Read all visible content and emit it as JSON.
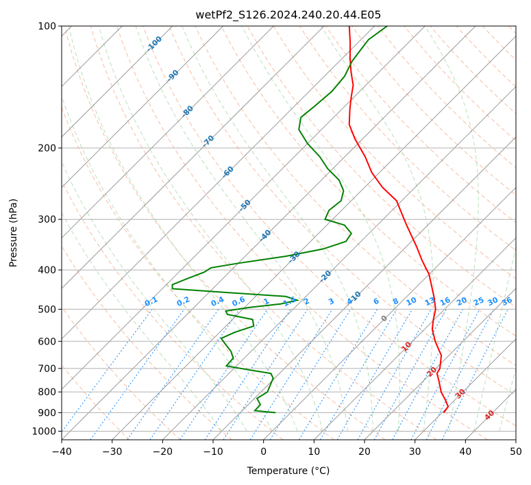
{
  "chart_data": {
    "type": "line",
    "title": "wetPf2_S126.2024.240.20.44.E05",
    "xlabel": "Temperature (°C)",
    "ylabel": "Pressure (hPa)",
    "xlim": [
      -40,
      50
    ],
    "ylim": [
      1050,
      100
    ],
    "y_scale": "log",
    "grid": true,
    "x_ticks": [
      -40,
      -30,
      -20,
      -10,
      0,
      10,
      20,
      30,
      40,
      50
    ],
    "y_ticks": [
      100,
      200,
      300,
      400,
      500,
      600,
      700,
      800,
      900,
      1000
    ],
    "colors": {
      "temperature": "#ff0000",
      "dewpoint": "#008000",
      "isotherm": "#999999",
      "dry_adiabat": "#f4a582",
      "moist_adiabat": "#a6d8a6",
      "mixing_ratio": "#1e90ff",
      "grid": "#b0b0b0",
      "isotherm_label": "#1f77b4",
      "moist_label": "#d62728",
      "zero_label": "#7f7f7f"
    },
    "series": [
      {
        "role": "temperature",
        "points": [
          {
            "p": 900,
            "t": 30.3
          },
          {
            "p": 870,
            "t": 30.0
          },
          {
            "p": 840,
            "t": 28.3
          },
          {
            "p": 800,
            "t": 25.7
          },
          {
            "p": 750,
            "t": 23.0
          },
          {
            "p": 720,
            "t": 21.2
          },
          {
            "p": 700,
            "t": 20.8
          },
          {
            "p": 650,
            "t": 18.5
          },
          {
            "p": 600,
            "t": 14.5
          },
          {
            "p": 560,
            "t": 11.5
          },
          {
            "p": 530,
            "t": 9.8
          },
          {
            "p": 500,
            "t": 8.2
          },
          {
            "p": 470,
            "t": 5.8
          },
          {
            "p": 440,
            "t": 3.0
          },
          {
            "p": 410,
            "t": 0.0
          },
          {
            "p": 380,
            "t": -4.0
          },
          {
            "p": 350,
            "t": -8.0
          },
          {
            "p": 330,
            "t": -11.0
          },
          {
            "p": 310,
            "t": -14.2
          },
          {
            "p": 290,
            "t": -17.5
          },
          {
            "p": 270,
            "t": -21.0
          },
          {
            "p": 250,
            "t": -26.5
          },
          {
            "p": 230,
            "t": -31.5
          },
          {
            "p": 210,
            "t": -36.0
          },
          {
            "p": 190,
            "t": -41.5
          },
          {
            "p": 175,
            "t": -45.5
          },
          {
            "p": 160,
            "t": -48.5
          },
          {
            "p": 150,
            "t": -50.5
          },
          {
            "p": 140,
            "t": -52.5
          },
          {
            "p": 130,
            "t": -55.5
          },
          {
            "p": 120,
            "t": -58.5
          },
          {
            "p": 110,
            "t": -61.5
          },
          {
            "p": 100,
            "t": -65.0
          }
        ]
      },
      {
        "role": "dewpoint",
        "points": [
          {
            "p": 900,
            "t": -3.0
          },
          {
            "p": 890,
            "t": -7.5
          },
          {
            "p": 860,
            "t": -7.6
          },
          {
            "p": 830,
            "t": -9.5
          },
          {
            "p": 800,
            "t": -8.7
          },
          {
            "p": 770,
            "t": -9.5
          },
          {
            "p": 740,
            "t": -10.3
          },
          {
            "p": 720,
            "t": -11.7
          },
          {
            "p": 705,
            "t": -17.0
          },
          {
            "p": 690,
            "t": -22.0
          },
          {
            "p": 660,
            "t": -22.2
          },
          {
            "p": 635,
            "t": -24.0
          },
          {
            "p": 610,
            "t": -26.5
          },
          {
            "p": 590,
            "t": -28.5
          },
          {
            "p": 570,
            "t": -27.0
          },
          {
            "p": 550,
            "t": -24.5
          },
          {
            "p": 530,
            "t": -26.0
          },
          {
            "p": 515,
            "t": -32.0
          },
          {
            "p": 505,
            "t": -33.0
          },
          {
            "p": 495,
            "t": -29.0
          },
          {
            "p": 485,
            "t": -23.5
          },
          {
            "p": 475,
            "t": -21.0
          },
          {
            "p": 465,
            "t": -24.0
          },
          {
            "p": 455,
            "t": -36.0
          },
          {
            "p": 445,
            "t": -48.0
          },
          {
            "p": 435,
            "t": -48.8
          },
          {
            "p": 420,
            "t": -47.0
          },
          {
            "p": 405,
            "t": -45.0
          },
          {
            "p": 395,
            "t": -44.5
          },
          {
            "p": 385,
            "t": -40.0
          },
          {
            "p": 370,
            "t": -32.0
          },
          {
            "p": 355,
            "t": -26.0
          },
          {
            "p": 340,
            "t": -23.0
          },
          {
            "p": 325,
            "t": -23.5
          },
          {
            "p": 310,
            "t": -26.5
          },
          {
            "p": 300,
            "t": -31.5
          },
          {
            "p": 285,
            "t": -32.5
          },
          {
            "p": 270,
            "t": -32.0
          },
          {
            "p": 255,
            "t": -33.5
          },
          {
            "p": 240,
            "t": -36.5
          },
          {
            "p": 225,
            "t": -41.0
          },
          {
            "p": 210,
            "t": -45.0
          },
          {
            "p": 195,
            "t": -50.0
          },
          {
            "p": 180,
            "t": -54.5
          },
          {
            "p": 168,
            "t": -56.5
          },
          {
            "p": 158,
            "t": -56.0
          },
          {
            "p": 145,
            "t": -55.5
          },
          {
            "p": 133,
            "t": -56.0
          },
          {
            "p": 122,
            "t": -57.5
          },
          {
            "p": 115,
            "t": -58.0
          },
          {
            "p": 108,
            "t": -58.5
          },
          {
            "p": 100,
            "t": -57.5
          }
        ]
      }
    ],
    "isotherm_labels": [
      "-100",
      "-90",
      "-80",
      "-70",
      "-60",
      "-50",
      "-40",
      "-30",
      "-20",
      "-10",
      "0",
      "10",
      "20",
      "30",
      "40"
    ],
    "mixing_ratio_labels": [
      "0.1",
      "0.2",
      "0.4",
      "0.6",
      "1",
      "1.5",
      "2",
      "3",
      "4",
      "6",
      "8",
      "10",
      "13",
      "16",
      "20",
      "25",
      "30",
      "36"
    ],
    "mixing_ratio_values": [
      0.1,
      0.2,
      0.4,
      0.6,
      1,
      1.5,
      2,
      3,
      4,
      6,
      8,
      10,
      13,
      16,
      20,
      25,
      30,
      36
    ]
  }
}
